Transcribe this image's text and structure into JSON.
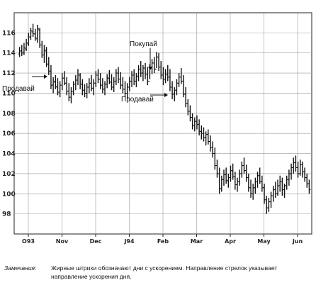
{
  "chart_data": {
    "type": "bar",
    "subtype": "ohlc-price-chart",
    "title": "",
    "xlabel": "",
    "ylabel": "",
    "ylim": [
      96,
      118
    ],
    "yticks": [
      98,
      100,
      102,
      104,
      106,
      108,
      110,
      112,
      114,
      116
    ],
    "x_tick_labels": [
      "O93",
      "Nov",
      "Dec",
      "J94",
      "Feb",
      "Mar",
      "Apr",
      "May",
      "Jun"
    ],
    "grid": true,
    "annotations": [
      {
        "text": "Покупай",
        "type": "buy"
      },
      {
        "text": "Продавай",
        "type": "sell",
        "side": "left"
      },
      {
        "text": "Продавай",
        "type": "sell",
        "side": "middle"
      }
    ],
    "series": [
      {
        "values": [
          {
            "h": 114.6,
            "l": 113.6,
            "o": 113.9,
            "c": 114.2
          },
          {
            "h": 114.8,
            "l": 113.7,
            "o": 114.2,
            "c": 114.0
          },
          {
            "h": 115.0,
            "l": 113.8,
            "o": 114.0,
            "c": 114.5
          },
          {
            "h": 115.4,
            "l": 114.2,
            "o": 114.4,
            "c": 115.0
          },
          {
            "h": 116.0,
            "l": 114.7,
            "o": 114.9,
            "c": 115.6
          },
          {
            "h": 116.5,
            "l": 115.3,
            "o": 115.6,
            "c": 116.2
          },
          {
            "h": 116.9,
            "l": 115.6,
            "o": 116.1,
            "c": 115.9
          },
          {
            "h": 116.4,
            "l": 115.2,
            "o": 115.9,
            "c": 115.5
          },
          {
            "h": 116.8,
            "l": 115.0,
            "o": 115.4,
            "c": 116.4
          },
          {
            "h": 116.5,
            "l": 114.5,
            "o": 116.3,
            "c": 114.8
          },
          {
            "h": 115.2,
            "l": 113.5,
            "o": 114.8,
            "c": 113.8
          },
          {
            "h": 114.8,
            "l": 113.0,
            "o": 113.8,
            "c": 114.3
          },
          {
            "h": 114.6,
            "l": 112.6,
            "o": 114.2,
            "c": 112.9
          },
          {
            "h": 113.6,
            "l": 111.8,
            "o": 112.9,
            "c": 112.2
          },
          {
            "h": 112.8,
            "l": 110.4,
            "o": 112.2,
            "c": 110.8
          },
          {
            "h": 111.6,
            "l": 110.0,
            "o": 110.8,
            "c": 111.2
          },
          {
            "h": 111.8,
            "l": 110.4,
            "o": 111.1,
            "c": 110.7
          },
          {
            "h": 111.5,
            "l": 109.8,
            "o": 110.6,
            "c": 110.1
          },
          {
            "h": 111.2,
            "l": 109.6,
            "o": 110.1,
            "c": 110.8
          },
          {
            "h": 112.0,
            "l": 110.3,
            "o": 110.8,
            "c": 111.5
          },
          {
            "h": 112.2,
            "l": 110.8,
            "o": 111.5,
            "c": 111.0
          },
          {
            "h": 111.6,
            "l": 109.8,
            "o": 111.0,
            "c": 110.2
          },
          {
            "h": 111.0,
            "l": 109.2,
            "o": 110.2,
            "c": 109.6
          },
          {
            "h": 110.6,
            "l": 109.0,
            "o": 109.6,
            "c": 110.2
          },
          {
            "h": 111.2,
            "l": 109.8,
            "o": 110.2,
            "c": 110.9
          },
          {
            "h": 111.8,
            "l": 110.3,
            "o": 110.9,
            "c": 111.3
          },
          {
            "h": 112.4,
            "l": 110.8,
            "o": 111.3,
            "c": 111.8
          },
          {
            "h": 112.0,
            "l": 110.4,
            "o": 111.8,
            "c": 110.9
          },
          {
            "h": 111.4,
            "l": 109.8,
            "o": 110.9,
            "c": 110.3
          },
          {
            "h": 110.9,
            "l": 109.6,
            "o": 110.3,
            "c": 110.0
          },
          {
            "h": 111.0,
            "l": 109.5,
            "o": 110.0,
            "c": 110.6
          },
          {
            "h": 111.5,
            "l": 110.0,
            "o": 110.6,
            "c": 111.0
          },
          {
            "h": 111.8,
            "l": 110.2,
            "o": 111.0,
            "c": 110.5
          },
          {
            "h": 111.4,
            "l": 109.8,
            "o": 110.5,
            "c": 111.0
          },
          {
            "h": 112.2,
            "l": 110.6,
            "o": 111.0,
            "c": 111.8
          },
          {
            "h": 112.4,
            "l": 111.0,
            "o": 111.8,
            "c": 111.4
          },
          {
            "h": 112.0,
            "l": 110.4,
            "o": 111.4,
            "c": 110.8
          },
          {
            "h": 111.5,
            "l": 110.0,
            "o": 110.8,
            "c": 110.4
          },
          {
            "h": 111.2,
            "l": 109.8,
            "o": 110.4,
            "c": 110.9
          },
          {
            "h": 111.9,
            "l": 110.5,
            "o": 110.9,
            "c": 111.5
          },
          {
            "h": 112.3,
            "l": 110.9,
            "o": 111.5,
            "c": 111.1
          },
          {
            "h": 111.9,
            "l": 110.3,
            "o": 111.1,
            "c": 110.6
          },
          {
            "h": 111.6,
            "l": 110.1,
            "o": 110.6,
            "c": 111.2
          },
          {
            "h": 112.4,
            "l": 110.8,
            "o": 111.2,
            "c": 112.0
          },
          {
            "h": 112.6,
            "l": 111.0,
            "o": 112.0,
            "c": 111.4
          },
          {
            "h": 112.1,
            "l": 110.4,
            "o": 111.4,
            "c": 110.8
          },
          {
            "h": 111.6,
            "l": 110.0,
            "o": 110.8,
            "c": 110.4
          },
          {
            "h": 111.2,
            "l": 109.6,
            "o": 110.4,
            "c": 110.0
          },
          {
            "h": 111.0,
            "l": 109.4,
            "o": 110.0,
            "c": 110.6
          },
          {
            "h": 111.6,
            "l": 110.2,
            "o": 110.6,
            "c": 111.2
          },
          {
            "h": 112.2,
            "l": 110.6,
            "o": 111.2,
            "c": 111.8
          },
          {
            "h": 112.4,
            "l": 110.8,
            "o": 111.8,
            "c": 111.2
          },
          {
            "h": 112.0,
            "l": 110.6,
            "o": 111.2,
            "c": 111.7
          },
          {
            "h": 112.8,
            "l": 111.2,
            "o": 111.7,
            "c": 112.4
          },
          {
            "h": 113.2,
            "l": 111.6,
            "o": 112.4,
            "c": 112.0
          },
          {
            "h": 112.8,
            "l": 111.2,
            "o": 112.0,
            "c": 112.5
          },
          {
            "h": 113.0,
            "l": 111.4,
            "o": 112.5,
            "c": 111.9
          },
          {
            "h": 112.6,
            "l": 110.8,
            "o": 111.9,
            "c": 111.2
          },
          {
            "h": 112.9,
            "l": 111.4,
            "o": 111.2,
            "c": 112.5
          },
          {
            "h": 113.4,
            "l": 111.9,
            "o": 112.5,
            "c": 113.0
          },
          {
            "h": 113.6,
            "l": 112.0,
            "o": 113.0,
            "c": 112.4
          },
          {
            "h": 114.1,
            "l": 112.5,
            "o": 112.4,
            "c": 113.6
          },
          {
            "h": 114.0,
            "l": 112.2,
            "o": 113.6,
            "c": 112.6
          },
          {
            "h": 113.2,
            "l": 111.4,
            "o": 112.6,
            "c": 111.8
          },
          {
            "h": 112.6,
            "l": 110.8,
            "o": 111.8,
            "c": 111.4
          },
          {
            "h": 112.4,
            "l": 111.0,
            "o": 111.4,
            "c": 111.9
          },
          {
            "h": 112.8,
            "l": 111.2,
            "o": 111.9,
            "c": 111.6
          },
          {
            "h": 112.4,
            "l": 110.2,
            "o": 111.6,
            "c": 110.6
          },
          {
            "h": 111.2,
            "l": 109.4,
            "o": 110.6,
            "c": 109.9
          },
          {
            "h": 110.6,
            "l": 109.2,
            "o": 109.9,
            "c": 110.3
          },
          {
            "h": 111.4,
            "l": 109.8,
            "o": 110.3,
            "c": 111.0
          },
          {
            "h": 112.0,
            "l": 110.6,
            "o": 111.0,
            "c": 111.6
          },
          {
            "h": 112.5,
            "l": 110.9,
            "o": 111.6,
            "c": 111.2
          },
          {
            "h": 111.8,
            "l": 109.6,
            "o": 111.2,
            "c": 109.9
          },
          {
            "h": 110.6,
            "l": 108.6,
            "o": 109.9,
            "c": 109.0
          },
          {
            "h": 109.4,
            "l": 107.8,
            "o": 109.0,
            "c": 108.2
          },
          {
            "h": 108.8,
            "l": 107.2,
            "o": 108.2,
            "c": 107.6
          },
          {
            "h": 108.0,
            "l": 106.4,
            "o": 107.6,
            "c": 106.8
          },
          {
            "h": 107.6,
            "l": 106.2,
            "o": 106.8,
            "c": 107.2
          },
          {
            "h": 107.8,
            "l": 106.4,
            "o": 107.2,
            "c": 106.9
          },
          {
            "h": 107.4,
            "l": 105.8,
            "o": 106.9,
            "c": 106.2
          },
          {
            "h": 106.8,
            "l": 105.4,
            "o": 106.2,
            "c": 106.0
          },
          {
            "h": 106.6,
            "l": 105.2,
            "o": 106.0,
            "c": 105.6
          },
          {
            "h": 106.2,
            "l": 104.8,
            "o": 105.6,
            "c": 105.9
          },
          {
            "h": 106.4,
            "l": 104.9,
            "o": 105.9,
            "c": 105.2
          },
          {
            "h": 105.8,
            "l": 104.2,
            "o": 105.2,
            "c": 104.6
          },
          {
            "h": 105.2,
            "l": 103.6,
            "o": 104.6,
            "c": 104.0
          },
          {
            "h": 104.6,
            "l": 102.4,
            "o": 104.0,
            "c": 102.8
          },
          {
            "h": 103.4,
            "l": 101.6,
            "o": 102.8,
            "c": 102.0
          },
          {
            "h": 102.6,
            "l": 100.0,
            "o": 102.0,
            "c": 100.5
          },
          {
            "h": 101.8,
            "l": 100.2,
            "o": 100.5,
            "c": 101.4
          },
          {
            "h": 102.4,
            "l": 100.8,
            "o": 101.4,
            "c": 101.9
          },
          {
            "h": 102.6,
            "l": 101.0,
            "o": 101.9,
            "c": 101.3
          },
          {
            "h": 102.0,
            "l": 100.6,
            "o": 101.3,
            "c": 101.6
          },
          {
            "h": 102.8,
            "l": 101.2,
            "o": 101.6,
            "c": 102.3
          },
          {
            "h": 103.0,
            "l": 101.4,
            "o": 102.3,
            "c": 101.7
          },
          {
            "h": 102.2,
            "l": 100.4,
            "o": 101.7,
            "c": 100.9
          },
          {
            "h": 101.6,
            "l": 100.2,
            "o": 100.9,
            "c": 101.2
          },
          {
            "h": 102.4,
            "l": 100.8,
            "o": 101.2,
            "c": 102.0
          },
          {
            "h": 103.2,
            "l": 101.6,
            "o": 102.0,
            "c": 102.8
          },
          {
            "h": 103.6,
            "l": 102.0,
            "o": 102.8,
            "c": 102.3
          },
          {
            "h": 102.9,
            "l": 101.2,
            "o": 102.3,
            "c": 101.6
          },
          {
            "h": 102.0,
            "l": 100.2,
            "o": 101.6,
            "c": 100.6
          },
          {
            "h": 101.4,
            "l": 99.6,
            "o": 100.6,
            "c": 100.0
          },
          {
            "h": 101.0,
            "l": 99.4,
            "o": 100.0,
            "c": 100.6
          },
          {
            "h": 101.6,
            "l": 100.0,
            "o": 100.6,
            "c": 101.2
          },
          {
            "h": 102.2,
            "l": 100.6,
            "o": 101.2,
            "c": 101.8
          },
          {
            "h": 102.6,
            "l": 101.0,
            "o": 101.8,
            "c": 101.2
          },
          {
            "h": 101.8,
            "l": 100.2,
            "o": 101.2,
            "c": 100.6
          },
          {
            "h": 101.0,
            "l": 99.0,
            "o": 100.6,
            "c": 99.4
          },
          {
            "h": 99.8,
            "l": 98.0,
            "o": 99.4,
            "c": 98.6
          },
          {
            "h": 99.6,
            "l": 98.2,
            "o": 98.6,
            "c": 99.2
          },
          {
            "h": 100.2,
            "l": 98.6,
            "o": 99.2,
            "c": 99.8
          },
          {
            "h": 100.8,
            "l": 99.2,
            "o": 99.8,
            "c": 100.4
          },
          {
            "h": 101.2,
            "l": 99.6,
            "o": 100.4,
            "c": 100.0
          },
          {
            "h": 101.4,
            "l": 99.8,
            "o": 100.0,
            "c": 100.8
          },
          {
            "h": 101.8,
            "l": 100.2,
            "o": 100.8,
            "c": 101.2
          },
          {
            "h": 101.6,
            "l": 99.8,
            "o": 101.2,
            "c": 100.4
          },
          {
            "h": 101.0,
            "l": 99.6,
            "o": 100.4,
            "c": 100.8
          },
          {
            "h": 101.8,
            "l": 100.4,
            "o": 100.8,
            "c": 101.4
          },
          {
            "h": 102.4,
            "l": 100.8,
            "o": 101.4,
            "c": 102.0
          },
          {
            "h": 103.0,
            "l": 101.4,
            "o": 102.0,
            "c": 102.6
          },
          {
            "h": 103.6,
            "l": 102.0,
            "o": 102.6,
            "c": 103.1
          },
          {
            "h": 103.8,
            "l": 102.2,
            "o": 103.1,
            "c": 102.6
          },
          {
            "h": 103.2,
            "l": 101.6,
            "o": 102.6,
            "c": 102.0
          },
          {
            "h": 103.4,
            "l": 101.8,
            "o": 102.0,
            "c": 102.9
          },
          {
            "h": 103.2,
            "l": 101.6,
            "o": 102.9,
            "c": 102.2
          },
          {
            "h": 102.6,
            "l": 101.2,
            "o": 102.2,
            "c": 101.6
          },
          {
            "h": 102.0,
            "l": 100.6,
            "o": 101.6,
            "c": 101.0
          },
          {
            "h": 101.4,
            "l": 100.0,
            "o": 101.0,
            "c": 100.4
          }
        ]
      }
    ]
  },
  "note": {
    "label": "Замечания:",
    "text": "Жирные штрихи обозначают дни с ускорением. Направление стрелок указывает направление ускорения дня."
  }
}
